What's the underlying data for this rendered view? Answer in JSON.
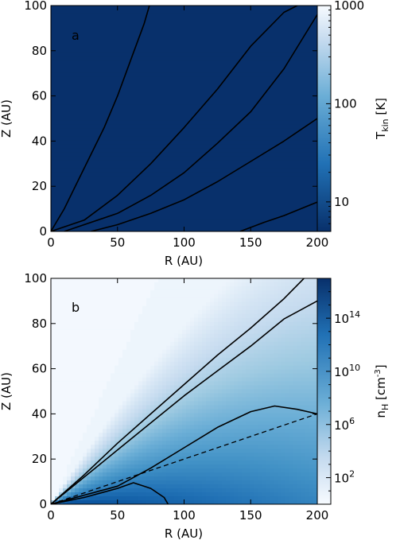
{
  "chart_data": [
    {
      "type": "heatmap",
      "panel_label": "a",
      "xlabel": "R (AU)",
      "ylabel": "Z (AU)",
      "xlim": [
        0,
        200
      ],
      "ylim": [
        0,
        100
      ],
      "x_ticks": [
        "0",
        "50",
        "100",
        "150",
        "200"
      ],
      "y_ticks": [
        "0",
        "20",
        "40",
        "60",
        "80",
        "100"
      ],
      "colorbar": {
        "label_main": "T",
        "label_sub": "kin",
        "label_unit": " [K]",
        "scale": "log",
        "range": [
          5,
          1000
        ],
        "ticks": [
          {
            "value": 10,
            "label": "10"
          },
          {
            "value": 100,
            "label": "100"
          },
          {
            "value": 1000,
            "label": "1000"
          }
        ]
      },
      "contours": [
        {
          "points": [
            [
              0,
              0
            ],
            [
              10,
              10
            ],
            [
              20,
              22
            ],
            [
              30,
              34
            ],
            [
              40,
              46
            ],
            [
              50,
              60
            ],
            [
              60,
              76
            ],
            [
              70,
              92
            ],
            [
              74,
              100
            ]
          ]
        },
        {
          "points": [
            [
              0,
              0
            ],
            [
              25,
              5
            ],
            [
              50,
              16
            ],
            [
              75,
              30
            ],
            [
              100,
              46
            ],
            [
              125,
              63
            ],
            [
              150,
              82
            ],
            [
              175,
              97
            ],
            [
              185,
              100
            ]
          ]
        },
        {
          "points": [
            [
              10,
              0
            ],
            [
              50,
              8
            ],
            [
              75,
              16
            ],
            [
              100,
              26
            ],
            [
              125,
              39
            ],
            [
              150,
              53
            ],
            [
              175,
              72
            ],
            [
              200,
              96
            ]
          ]
        },
        {
          "points": [
            [
              30,
              0
            ],
            [
              50,
              3
            ],
            [
              75,
              8
            ],
            [
              100,
              14
            ],
            [
              125,
              22
            ],
            [
              150,
              31
            ],
            [
              175,
              40
            ],
            [
              200,
              50
            ]
          ]
        },
        {
          "points": [
            [
              142,
              0
            ],
            [
              160,
              4
            ],
            [
              175,
              7
            ],
            [
              200,
              13
            ]
          ]
        }
      ],
      "grid": false
    },
    {
      "type": "heatmap",
      "panel_label": "b",
      "xlabel": "R (AU)",
      "ylabel": "Z (AU)",
      "xlim": [
        0,
        200
      ],
      "ylim": [
        0,
        100
      ],
      "x_ticks": [
        "0",
        "50",
        "100",
        "150",
        "200"
      ],
      "y_ticks": [
        "0",
        "20",
        "40",
        "60",
        "80",
        "100"
      ],
      "colorbar": {
        "label_main": "n",
        "label_sub": "H",
        "label_unit": " [cm",
        "label_sup": "-3",
        "label_end": "]",
        "scale": "log",
        "range": [
          1,
          100000000000000000
        ],
        "ticks": [
          {
            "base": "10",
            "exp": "2",
            "log": 2
          },
          {
            "base": "10",
            "exp": "6",
            "log": 6
          },
          {
            "base": "10",
            "exp": "10",
            "log": 10
          },
          {
            "base": "10",
            "exp": "14",
            "log": 14
          }
        ]
      },
      "contours": [
        {
          "points": [
            [
              0,
              0
            ],
            [
              25,
              3
            ],
            [
              50,
              7
            ],
            [
              62,
              9.5
            ],
            [
              75,
              7
            ],
            [
              85,
              3
            ],
            [
              88,
              0
            ]
          ]
        },
        {
          "points": [
            [
              0,
              0
            ],
            [
              25,
              4
            ],
            [
              50,
              8
            ],
            [
              75,
              16
            ],
            [
              100,
              25
            ],
            [
              125,
              34
            ],
            [
              150,
              41
            ],
            [
              168,
              43.5
            ],
            [
              185,
              42
            ],
            [
              200,
              40
            ]
          ]
        },
        {
          "points": [
            [
              0,
              0
            ],
            [
              25,
              12
            ],
            [
              50,
              24
            ],
            [
              75,
              36
            ],
            [
              100,
              48
            ],
            [
              125,
              59
            ],
            [
              150,
              70
            ],
            [
              175,
              82
            ],
            [
              200,
              90
            ]
          ]
        },
        {
          "points": [
            [
              0,
              0
            ],
            [
              25,
              13
            ],
            [
              50,
              27
            ],
            [
              75,
              40
            ],
            [
              100,
              53
            ],
            [
              125,
              66
            ],
            [
              150,
              78
            ],
            [
              175,
              91
            ],
            [
              190,
              100
            ]
          ]
        }
      ],
      "dashed_line": {
        "points": [
          [
            0,
            0
          ],
          [
            200,
            40
          ]
        ]
      },
      "grid": false
    }
  ]
}
